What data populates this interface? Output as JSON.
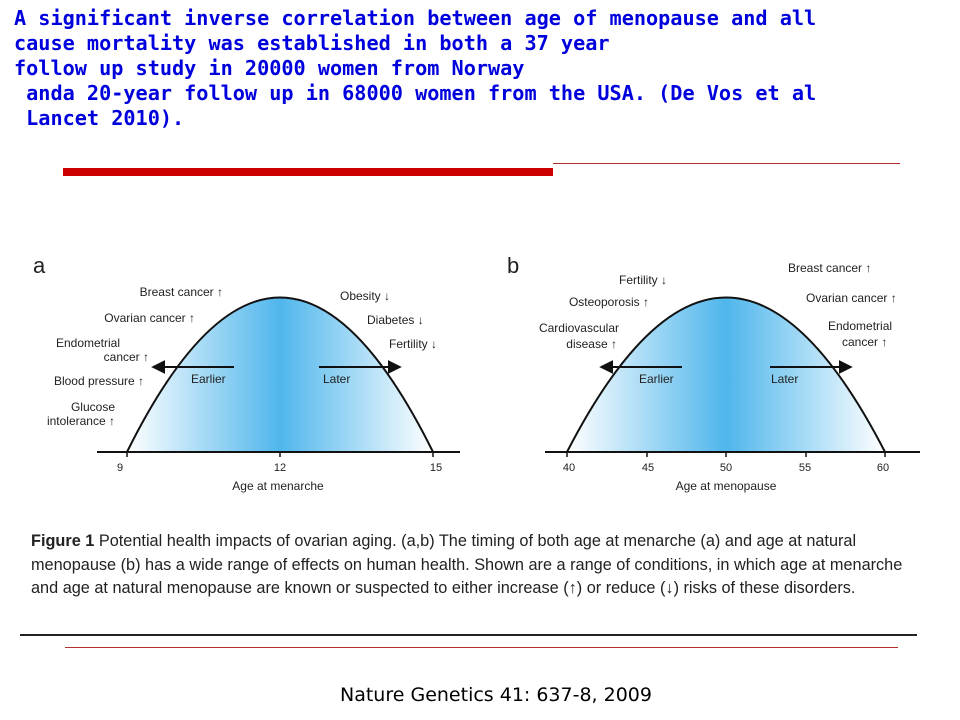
{
  "headline": {
    "lines": [
      "A significant inverse correlation between age of menopause and all",
      "cause mortality was established in both a 37 year",
      "follow up study in 20000 women from Norway",
      " anda 20-year follow up in 68000 women from the USA. (De Vos et al",
      " Lancet 2010)."
    ]
  },
  "colors": {
    "headline": "#0000dd",
    "accent_rule": "#cc0000",
    "curve_fill_center": "#4fb6ec",
    "curve_fill_edge": "#ffffff"
  },
  "figure": {
    "panel_a": {
      "label": "a",
      "axis_title": "Age at menarche",
      "ticks": [
        "9",
        "12",
        "15"
      ],
      "left_labels": [
        "Breast cancer ↑",
        "Ovarian cancer ↑",
        "Endometrial",
        "cancer ↑",
        "Blood pressure ↑",
        "Glucose",
        "intolerance ↑"
      ],
      "right_labels": [
        "Obesity ↓",
        "Diabetes ↓",
        "Fertility ↓"
      ],
      "earlier": "Earlier",
      "later": "Later"
    },
    "panel_b": {
      "label": "b",
      "axis_title": "Age at menopause",
      "ticks": [
        "40",
        "45",
        "50",
        "55",
        "60"
      ],
      "left_labels": [
        "Fertility ↓",
        "Osteoporosis ↑",
        "Cardiovascular",
        "disease ↑"
      ],
      "right_labels": [
        "Breast cancer ↑",
        "Ovarian cancer ↑",
        "Endometrial",
        "cancer ↑"
      ],
      "earlier": "Earlier",
      "later": "Later"
    },
    "caption": {
      "fig_label": "Figure 1",
      "text": "  Potential health impacts of ovarian aging. (a,b) The timing of both age at menarche (a) and age at natural menopause (b) has a wide range of effects on human health. Shown are a range of conditions, in which age at menarche and age at natural menopause are known or suspected to either increase (↑) or reduce (↓) risks of these disorders."
    }
  },
  "citation": "Nature Genetics 41: 637-8, 2009"
}
